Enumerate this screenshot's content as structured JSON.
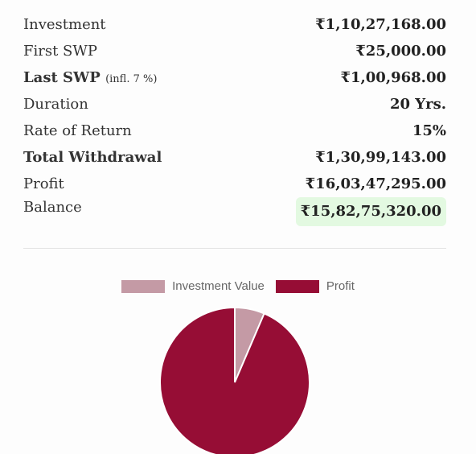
{
  "summary": {
    "investment": {
      "label": "Investment",
      "value": "₹1,10,27,168.00"
    },
    "first_swp": {
      "label": "First SWP",
      "value": "₹25,000.00"
    },
    "last_swp": {
      "label": "Last SWP",
      "note": "(infl. 7 %)",
      "value": "₹1,00,968.00"
    },
    "duration": {
      "label": "Duration",
      "value": "20 Yrs."
    },
    "rate_of_return": {
      "label": "Rate of Return",
      "value": "15%"
    },
    "total_withdrawal": {
      "label": "Total Withdrawal",
      "value": "₹1,30,99,143.00"
    },
    "profit": {
      "label": "Profit",
      "value": "₹16,03,47,295.00"
    },
    "balance": {
      "label": "Balance",
      "value": "₹15,82,75,320.00"
    }
  },
  "chart_data": {
    "type": "pie",
    "categories": [
      "Investment Value",
      "Profit"
    ],
    "values": [
      11027168.0,
      160347295.0
    ],
    "colors": [
      "#c49aa5",
      "#960d35"
    ],
    "legend": "top"
  }
}
